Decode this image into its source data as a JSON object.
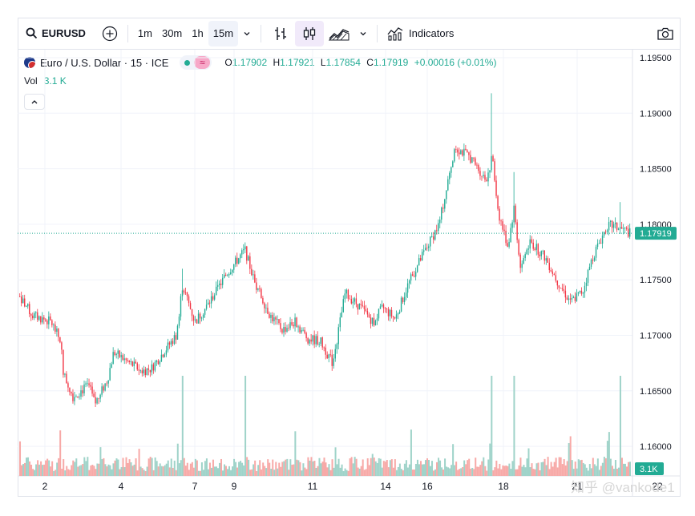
{
  "toolbar": {
    "symbol": "EURUSD",
    "intervals": [
      "1m",
      "30m",
      "1h",
      "15m"
    ],
    "active_interval": "15m",
    "indicators_label": "Indicators",
    "icons": [
      "search-icon",
      "add-symbol-icon",
      "chevron-down-icon",
      "bar-style-icon",
      "candle-style-icon",
      "area-style-icon",
      "indicators-icon",
      "camera-icon"
    ]
  },
  "legend": {
    "title": "Euro / U.S. Dollar · 15 · ICE",
    "o_key": "O",
    "o_val": "1.17902",
    "h_key": "H",
    "h_val": "1.17921",
    "l_key": "L",
    "l_val": "1.17854",
    "c_key": "C",
    "c_val": "1.17919",
    "change": "+0.00016 (+0.01%)",
    "vol_label": "Vol",
    "vol_value": "3.1 K"
  },
  "colors": {
    "up": "#22ab94",
    "down": "#f23645",
    "vol_up": "#9fd3c9",
    "vol_down": "#f7a9a7",
    "last_price": "#22ab94"
  },
  "watermark": "知乎 @vankode1",
  "chart_data": {
    "type": "candlestick",
    "symbol": "EURUSD",
    "timeframe": "15m",
    "y_ticks": [
      "1.19500",
      "1.19000",
      "1.18500",
      "1.18000",
      "1.17500",
      "1.17000",
      "1.16500",
      "1.16000"
    ],
    "ylim": [
      1.1575,
      1.1955
    ],
    "x_ticks": [
      "2",
      "4",
      "7",
      "9",
      "11",
      "14",
      "16",
      "18",
      "21",
      "22"
    ],
    "last_price": "1.17919",
    "last_volume": "3.1K",
    "price_path": [
      [
        0,
        1.1735
      ],
      [
        0.02,
        1.1718
      ],
      [
        0.05,
        1.1712
      ],
      [
        0.065,
        1.1695
      ],
      [
        0.07,
        1.1665
      ],
      [
        0.085,
        1.1645
      ],
      [
        0.11,
        1.1655
      ],
      [
        0.12,
        1.1638
      ],
      [
        0.14,
        1.166
      ],
      [
        0.15,
        1.1685
      ],
      [
        0.17,
        1.1677
      ],
      [
        0.195,
        1.1668
      ],
      [
        0.21,
        1.167
      ],
      [
        0.23,
        1.1685
      ],
      [
        0.25,
        1.17
      ],
      [
        0.26,
        1.1745
      ],
      [
        0.28,
        1.1712
      ],
      [
        0.3,
        1.1727
      ],
      [
        0.33,
        1.1755
      ],
      [
        0.36,
        1.1777
      ],
      [
        0.375,
        1.1748
      ],
      [
        0.4,
        1.1718
      ],
      [
        0.42,
        1.1705
      ],
      [
        0.44,
        1.1712
      ],
      [
        0.46,
        1.1697
      ],
      [
        0.48,
        1.1695
      ],
      [
        0.5,
        1.1675
      ],
      [
        0.52,
        1.1738
      ],
      [
        0.545,
        1.1725
      ],
      [
        0.565,
        1.1712
      ],
      [
        0.58,
        1.1725
      ],
      [
        0.6,
        1.1715
      ],
      [
        0.62,
        1.1745
      ],
      [
        0.64,
        1.1768
      ],
      [
        0.67,
        1.18
      ],
      [
        0.685,
        1.184
      ],
      [
        0.695,
        1.187
      ],
      [
        0.72,
        1.186
      ],
      [
        0.745,
        1.184
      ],
      [
        0.755,
        1.186
      ],
      [
        0.765,
        1.181
      ],
      [
        0.78,
        1.178
      ],
      [
        0.79,
        1.1815
      ],
      [
        0.8,
        1.176
      ],
      [
        0.815,
        1.1785
      ],
      [
        0.84,
        1.177
      ],
      [
        0.86,
        1.1748
      ],
      [
        0.88,
        1.173
      ],
      [
        0.9,
        1.174
      ],
      [
        0.915,
        1.177
      ],
      [
        0.94,
        1.18
      ],
      [
        0.965,
        1.1795
      ],
      [
        0.975,
        1.1792
      ]
    ],
    "spikes": [
      {
        "t": 0.755,
        "high": 1.1918
      },
      {
        "t": 0.79,
        "high": 1.1847
      },
      {
        "t": 0.36,
        "high": 1.1782
      },
      {
        "t": 0.26,
        "high": 1.176
      },
      {
        "t": 0.96,
        "high": 1.182
      }
    ]
  }
}
